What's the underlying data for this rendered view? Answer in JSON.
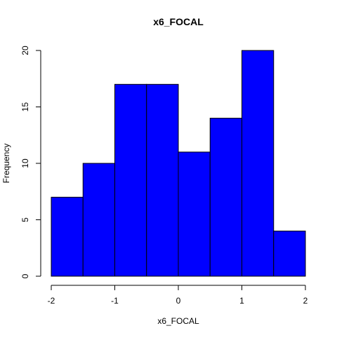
{
  "chart_data": {
    "type": "bar",
    "title": "x6_FOCAL",
    "xlabel": "x6_FOCAL",
    "ylabel": "Frequency",
    "bins": [
      {
        "start": -2.0,
        "end": -1.5,
        "value": 7
      },
      {
        "start": -1.5,
        "end": -1.0,
        "value": 10
      },
      {
        "start": -1.0,
        "end": -0.5,
        "value": 17
      },
      {
        "start": -0.5,
        "end": 0.0,
        "value": 17
      },
      {
        "start": 0.0,
        "end": 0.5,
        "value": 11
      },
      {
        "start": 0.5,
        "end": 1.0,
        "value": 14
      },
      {
        "start": 1.0,
        "end": 1.5,
        "value": 20
      },
      {
        "start": 1.5,
        "end": 2.0,
        "value": 4
      }
    ],
    "xlim": [
      -2,
      2
    ],
    "ylim": [
      0,
      20
    ],
    "x_ticks": [
      "-2",
      "-1",
      "0",
      "1",
      "2"
    ],
    "y_ticks": [
      "0",
      "5",
      "10",
      "15",
      "20"
    ],
    "bar_color": "#0000ff",
    "bar_edge_color": "#000000",
    "grid": false,
    "legend": "none"
  }
}
